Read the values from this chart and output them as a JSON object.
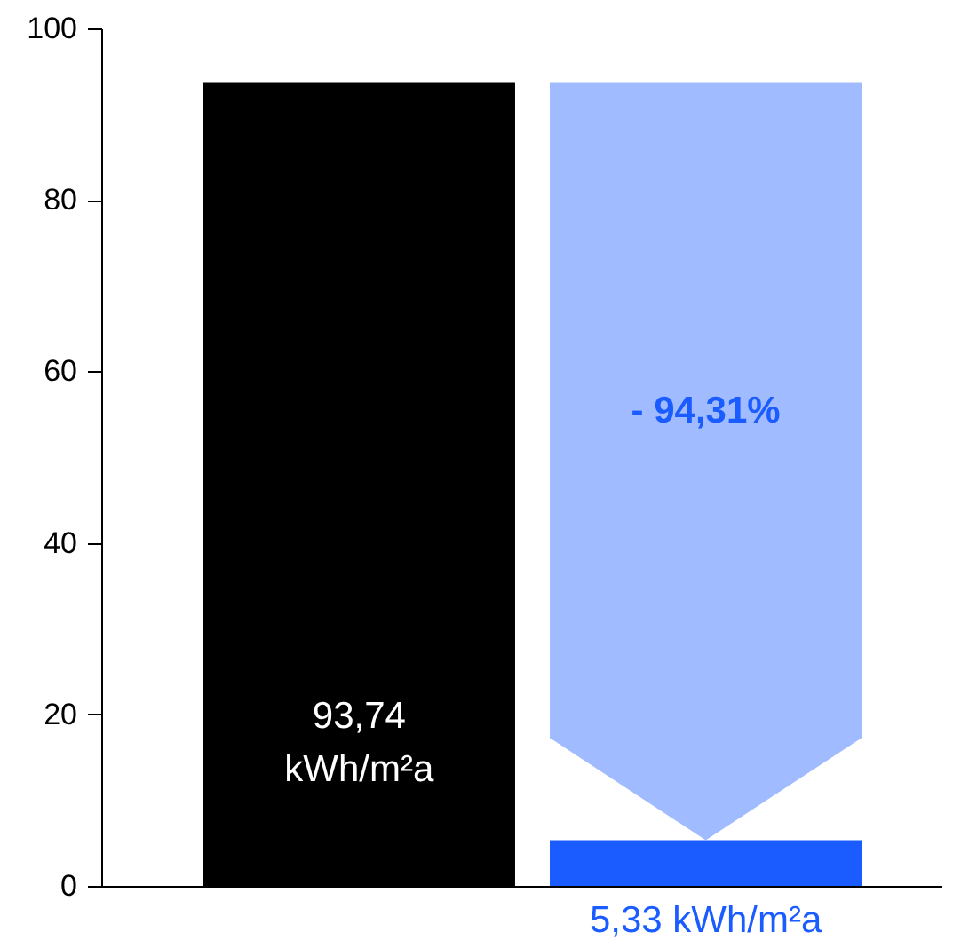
{
  "chart_data": {
    "type": "bar",
    "categories": [
      null,
      null
    ],
    "values": [
      93.74,
      5.33
    ],
    "colors": [
      "#000000",
      "#1a5cff"
    ],
    "value_labels": [
      "93,74\nkWh/m²a",
      "5,33 kWh/m²a"
    ],
    "annotations": [
      "- 94,31%"
    ],
    "ylim": [
      0,
      100
    ],
    "yticks": [
      0,
      20,
      40,
      60,
      80,
      100
    ],
    "grid": false,
    "tick_labels": "y"
  }
}
